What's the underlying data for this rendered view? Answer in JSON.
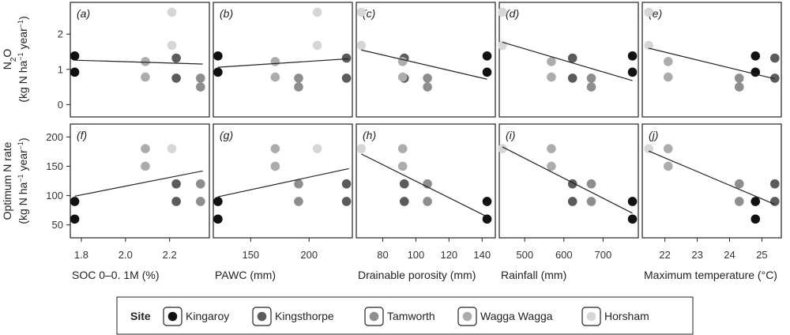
{
  "legend": {
    "title": "Site",
    "entries": [
      {
        "name": "Kingaroy",
        "color": "#111111"
      },
      {
        "name": "Kingsthorpe",
        "color": "#5b5b5b"
      },
      {
        "name": "Tamworth",
        "color": "#8e8e8e"
      },
      {
        "name": "Wagga Wagga",
        "color": "#acacac"
      },
      {
        "name": "Horsham",
        "color": "#d6d6d6"
      }
    ]
  },
  "ylabels": {
    "top": {
      "line1": "N",
      "sub": "2",
      "rest": "O",
      "line2": "(kg N ha",
      "sup1": "−1",
      "mid": " year",
      "sup2": "−1",
      "end": ")"
    },
    "bottom": {
      "line1": "Optimum N rate",
      "line2": "(kg N ha",
      "sup1": "−1",
      "mid": " year",
      "sup2": "−1",
      "end": ")"
    }
  },
  "rows": {
    "top": {
      "ylim": [
        -0.35,
        2.9
      ],
      "yticks": [
        0,
        1,
        2
      ],
      "yticklabels": [
        "0",
        "1",
        "2"
      ]
    },
    "bottom": {
      "ylim": [
        28,
        222
      ],
      "yticks": [
        50,
        100,
        150,
        200
      ],
      "yticklabels": [
        "50",
        "100",
        "150",
        "200"
      ]
    }
  },
  "columns": [
    {
      "xlabel": "SOC 0–0. 1M (%)",
      "xlim": [
        1.75,
        2.38
      ],
      "xticks": [
        1.8,
        2.0,
        2.2
      ],
      "xticklabels": [
        "1.8",
        "2.0",
        "2.2"
      ]
    },
    {
      "xlabel": "PAWC (mm)",
      "xlim": [
        118,
        237
      ],
      "xticks": [
        150,
        200
      ],
      "xticklabels": [
        "150",
        "200"
      ]
    },
    {
      "xlabel": "Drainable porosity (mm)",
      "xlim": [
        64,
        148
      ],
      "xticks": [
        80,
        100,
        120,
        140
      ],
      "xticklabels": [
        "80",
        "100",
        "120",
        "140"
      ]
    },
    {
      "xlabel": "Rainfall (mm)",
      "xlim": [
        435,
        790
      ],
      "xticks": [
        500,
        600,
        700
      ],
      "xticklabels": [
        "500",
        "600",
        "700"
      ]
    },
    {
      "xlabel": "Maximum temperature (°C)",
      "xlim": [
        21.3,
        25.6
      ],
      "xticks": [
        22,
        23,
        24,
        25
      ],
      "xticklabels": [
        "22",
        "23",
        "24",
        "25"
      ]
    }
  ],
  "chart_data": [
    {
      "id": "a",
      "label": "(a)",
      "type": "scatter",
      "row": "top",
      "col": 0,
      "points": [
        {
          "site": 0,
          "x": 1.77,
          "y": 1.38
        },
        {
          "site": 0,
          "x": 1.77,
          "y": 0.92
        },
        {
          "site": 1,
          "x": 2.23,
          "y": 1.32
        },
        {
          "site": 1,
          "x": 2.23,
          "y": 0.75
        },
        {
          "site": 2,
          "x": 2.34,
          "y": 0.75
        },
        {
          "site": 2,
          "x": 2.34,
          "y": 0.5
        },
        {
          "site": 3,
          "x": 2.09,
          "y": 1.22
        },
        {
          "site": 3,
          "x": 2.09,
          "y": 0.78
        },
        {
          "site": 4,
          "x": 2.21,
          "y": 2.62
        },
        {
          "site": 4,
          "x": 2.21,
          "y": 1.68
        }
      ],
      "trend": {
        "x": [
          1.77,
          2.35
        ],
        "y": [
          1.26,
          1.15
        ]
      }
    },
    {
      "id": "b",
      "label": "(b)",
      "type": "scatter",
      "row": "top",
      "col": 1,
      "points": [
        {
          "site": 0,
          "x": 122,
          "y": 1.38
        },
        {
          "site": 0,
          "x": 122,
          "y": 0.92
        },
        {
          "site": 1,
          "x": 232,
          "y": 1.32
        },
        {
          "site": 1,
          "x": 232,
          "y": 0.75
        },
        {
          "site": 2,
          "x": 191,
          "y": 0.75
        },
        {
          "site": 2,
          "x": 191,
          "y": 0.5
        },
        {
          "site": 3,
          "x": 171,
          "y": 1.22
        },
        {
          "site": 3,
          "x": 171,
          "y": 0.78
        },
        {
          "site": 4,
          "x": 207,
          "y": 2.62
        },
        {
          "site": 4,
          "x": 207,
          "y": 1.68
        }
      ],
      "trend": {
        "x": [
          122,
          234
        ],
        "y": [
          1.06,
          1.3
        ]
      }
    },
    {
      "id": "c",
      "label": "(c)",
      "type": "scatter",
      "row": "top",
      "col": 2,
      "points": [
        {
          "site": 0,
          "x": 143,
          "y": 1.38
        },
        {
          "site": 0,
          "x": 143,
          "y": 0.92
        },
        {
          "site": 1,
          "x": 93,
          "y": 1.32
        },
        {
          "site": 1,
          "x": 93,
          "y": 0.75
        },
        {
          "site": 2,
          "x": 107,
          "y": 0.75
        },
        {
          "site": 2,
          "x": 107,
          "y": 0.5
        },
        {
          "site": 3,
          "x": 92,
          "y": 1.22
        },
        {
          "site": 3,
          "x": 92,
          "y": 0.78
        },
        {
          "site": 4,
          "x": 67,
          "y": 2.62
        },
        {
          "site": 4,
          "x": 67,
          "y": 1.68
        }
      ],
      "trend": {
        "x": [
          67,
          143
        ],
        "y": [
          1.55,
          0.72
        ]
      }
    },
    {
      "id": "d",
      "label": "(d)",
      "type": "scatter",
      "row": "top",
      "col": 3,
      "points": [
        {
          "site": 0,
          "x": 775,
          "y": 1.38
        },
        {
          "site": 0,
          "x": 775,
          "y": 0.92
        },
        {
          "site": 1,
          "x": 622,
          "y": 1.32
        },
        {
          "site": 1,
          "x": 622,
          "y": 0.75
        },
        {
          "site": 2,
          "x": 670,
          "y": 0.75
        },
        {
          "site": 2,
          "x": 670,
          "y": 0.5
        },
        {
          "site": 3,
          "x": 568,
          "y": 1.22
        },
        {
          "site": 3,
          "x": 568,
          "y": 0.78
        },
        {
          "site": 4,
          "x": 443,
          "y": 2.62
        },
        {
          "site": 4,
          "x": 443,
          "y": 1.68
        }
      ],
      "trend": {
        "x": [
          443,
          775
        ],
        "y": [
          1.77,
          0.68
        ]
      }
    },
    {
      "id": "e",
      "label": "(e)",
      "type": "scatter",
      "row": "top",
      "col": 4,
      "points": [
        {
          "site": 0,
          "x": 24.8,
          "y": 1.38
        },
        {
          "site": 0,
          "x": 24.8,
          "y": 0.92
        },
        {
          "site": 1,
          "x": 25.4,
          "y": 1.32
        },
        {
          "site": 1,
          "x": 25.4,
          "y": 0.75
        },
        {
          "site": 2,
          "x": 24.3,
          "y": 0.75
        },
        {
          "site": 2,
          "x": 24.3,
          "y": 0.5
        },
        {
          "site": 3,
          "x": 22.1,
          "y": 1.22
        },
        {
          "site": 3,
          "x": 22.1,
          "y": 0.78
        },
        {
          "site": 4,
          "x": 21.5,
          "y": 2.62
        },
        {
          "site": 4,
          "x": 21.5,
          "y": 1.68
        }
      ],
      "trend": {
        "x": [
          21.5,
          25.4
        ],
        "y": [
          1.6,
          0.73
        ]
      }
    },
    {
      "id": "f",
      "label": "(f)",
      "type": "scatter",
      "row": "bottom",
      "col": 0,
      "points": [
        {
          "site": 0,
          "x": 1.77,
          "y": 90
        },
        {
          "site": 0,
          "x": 1.77,
          "y": 60
        },
        {
          "site": 1,
          "x": 2.23,
          "y": 120
        },
        {
          "site": 1,
          "x": 2.23,
          "y": 90
        },
        {
          "site": 2,
          "x": 2.34,
          "y": 120
        },
        {
          "site": 2,
          "x": 2.34,
          "y": 90
        },
        {
          "site": 3,
          "x": 2.09,
          "y": 180
        },
        {
          "site": 3,
          "x": 2.09,
          "y": 150
        },
        {
          "site": 4,
          "x": 2.21,
          "y": 180
        }
      ],
      "trend": {
        "x": [
          1.77,
          2.35
        ],
        "y": [
          99,
          142
        ]
      }
    },
    {
      "id": "g",
      "label": "(g)",
      "type": "scatter",
      "row": "bottom",
      "col": 1,
      "points": [
        {
          "site": 0,
          "x": 122,
          "y": 90
        },
        {
          "site": 0,
          "x": 122,
          "y": 60
        },
        {
          "site": 1,
          "x": 232,
          "y": 120
        },
        {
          "site": 1,
          "x": 232,
          "y": 90
        },
        {
          "site": 2,
          "x": 191,
          "y": 120
        },
        {
          "site": 2,
          "x": 191,
          "y": 90
        },
        {
          "site": 3,
          "x": 171,
          "y": 180
        },
        {
          "site": 3,
          "x": 171,
          "y": 150
        },
        {
          "site": 4,
          "x": 207,
          "y": 180
        }
      ],
      "trend": {
        "x": [
          122,
          234
        ],
        "y": [
          98,
          146
        ]
      }
    },
    {
      "id": "h",
      "label": "(h)",
      "type": "scatter",
      "row": "bottom",
      "col": 2,
      "points": [
        {
          "site": 0,
          "x": 143,
          "y": 90
        },
        {
          "site": 0,
          "x": 143,
          "y": 60
        },
        {
          "site": 1,
          "x": 93,
          "y": 120
        },
        {
          "site": 1,
          "x": 93,
          "y": 90
        },
        {
          "site": 2,
          "x": 107,
          "y": 120
        },
        {
          "site": 2,
          "x": 107,
          "y": 90
        },
        {
          "site": 3,
          "x": 92,
          "y": 180
        },
        {
          "site": 3,
          "x": 92,
          "y": 150
        },
        {
          "site": 4,
          "x": 67,
          "y": 180
        }
      ],
      "trend": {
        "x": [
          67,
          143
        ],
        "y": [
          171,
          64
        ]
      }
    },
    {
      "id": "i",
      "label": "(i)",
      "type": "scatter",
      "row": "bottom",
      "col": 3,
      "points": [
        {
          "site": 0,
          "x": 775,
          "y": 90
        },
        {
          "site": 0,
          "x": 775,
          "y": 60
        },
        {
          "site": 1,
          "x": 622,
          "y": 120
        },
        {
          "site": 1,
          "x": 622,
          "y": 90
        },
        {
          "site": 2,
          "x": 670,
          "y": 120
        },
        {
          "site": 2,
          "x": 670,
          "y": 90
        },
        {
          "site": 3,
          "x": 568,
          "y": 180
        },
        {
          "site": 3,
          "x": 568,
          "y": 150
        },
        {
          "site": 4,
          "x": 443,
          "y": 180
        }
      ],
      "trend": {
        "x": [
          443,
          775
        ],
        "y": [
          183,
          70
        ]
      }
    },
    {
      "id": "j",
      "label": "(j)",
      "type": "scatter",
      "row": "bottom",
      "col": 4,
      "points": [
        {
          "site": 0,
          "x": 24.8,
          "y": 90
        },
        {
          "site": 0,
          "x": 24.8,
          "y": 60
        },
        {
          "site": 1,
          "x": 25.4,
          "y": 120
        },
        {
          "site": 1,
          "x": 25.4,
          "y": 90
        },
        {
          "site": 2,
          "x": 24.3,
          "y": 120
        },
        {
          "site": 2,
          "x": 24.3,
          "y": 90
        },
        {
          "site": 3,
          "x": 22.1,
          "y": 180
        },
        {
          "site": 3,
          "x": 22.1,
          "y": 150
        },
        {
          "site": 4,
          "x": 21.5,
          "y": 180
        }
      ],
      "trend": {
        "x": [
          21.5,
          25.4
        ],
        "y": [
          176,
          85
        ]
      }
    }
  ]
}
